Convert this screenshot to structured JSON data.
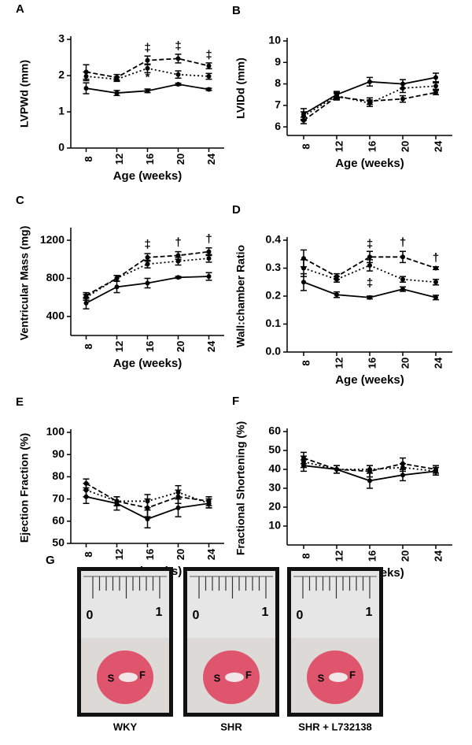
{
  "chart_data": [
    {
      "type": "line",
      "label": "A",
      "xlabel": "Age (weeks)",
      "ylabel": "LVPWd (mm)",
      "xlim": [
        6,
        26
      ],
      "xticks": [
        8,
        12,
        16,
        20,
        24
      ],
      "ylim": [
        0,
        3
      ],
      "yticks": [
        0,
        1,
        2,
        3
      ],
      "x": [
        8,
        12,
        16,
        20,
        24
      ],
      "series": [
        {
          "color": "#000000",
          "line_style": "solid",
          "values": [
            1.65,
            1.52,
            1.58,
            1.76,
            1.62
          ],
          "errors": [
            0.15,
            0.07,
            0.05,
            0.03,
            0.03
          ]
        },
        {
          "color": "#000000",
          "line_style": "dashed",
          "values": [
            2.1,
            1.95,
            2.42,
            2.47,
            2.27
          ],
          "errors": [
            0.2,
            0.08,
            0.12,
            0.12,
            0.08
          ]
        },
        {
          "color": "#000000",
          "line_style": "dotted",
          "values": [
            1.98,
            1.9,
            2.2,
            2.03,
            1.98
          ],
          "errors": [
            0.12,
            0.06,
            0.12,
            0.1,
            0.08
          ]
        }
      ],
      "annotations": [
        {
          "x": 16,
          "y": 2.75,
          "text": "‡"
        },
        {
          "x": 20,
          "y": 2.8,
          "text": "‡"
        },
        {
          "x": 24,
          "y": 2.55,
          "text": "‡"
        },
        {
          "x": 16,
          "y": 1.95,
          "text": "*"
        }
      ]
    },
    {
      "type": "line",
      "label": "B",
      "xlabel": "Age (weeks)",
      "ylabel": "LVIDd (mm)",
      "xlim": [
        6,
        26
      ],
      "xticks": [
        8,
        12,
        16,
        20,
        24
      ],
      "ylim": [
        5.6,
        10
      ],
      "yticks": [
        6,
        7,
        8,
        9,
        10
      ],
      "x": [
        8,
        12,
        16,
        20,
        24
      ],
      "series": [
        {
          "color": "#000000",
          "line_style": "solid",
          "values": [
            6.6,
            7.5,
            8.1,
            8.0,
            8.3
          ],
          "errors": [
            0.25,
            0.15,
            0.2,
            0.2,
            0.2
          ]
        },
        {
          "color": "#000000",
          "line_style": "dashed",
          "values": [
            6.3,
            7.4,
            7.2,
            7.3,
            7.6
          ],
          "errors": [
            0.15,
            0.15,
            0.15,
            0.15,
            0.1
          ]
        },
        {
          "color": "#000000",
          "line_style": "dotted",
          "values": [
            6.5,
            7.45,
            7.1,
            7.8,
            7.9
          ],
          "errors": [
            0.2,
            0.15,
            0.15,
            0.2,
            0.15
          ]
        }
      ],
      "annotations": []
    },
    {
      "type": "line",
      "label": "C",
      "xlabel": "Age (weeks)",
      "ylabel": "Ventricular Mass (mg)",
      "xlim": [
        6,
        26
      ],
      "xticks": [
        8,
        12,
        16,
        20,
        24
      ],
      "ylim": [
        200,
        1300
      ],
      "yticks": [
        400,
        800,
        1200
      ],
      "x": [
        8,
        12,
        16,
        20,
        24
      ],
      "series": [
        {
          "color": "#000000",
          "line_style": "solid",
          "values": [
            540,
            710,
            750,
            810,
            820
          ],
          "errors": [
            60,
            60,
            50,
            10,
            40
          ]
        },
        {
          "color": "#000000",
          "line_style": "dashed",
          "values": [
            620,
            800,
            1020,
            1040,
            1080
          ],
          "errors": [
            30,
            30,
            40,
            40,
            40
          ]
        },
        {
          "color": "#000000",
          "line_style": "dotted",
          "values": [
            600,
            800,
            950,
            980,
            1010
          ],
          "errors": [
            30,
            30,
            40,
            40,
            40
          ]
        }
      ],
      "annotations": [
        {
          "x": 16,
          "y": 1150,
          "text": "‡"
        },
        {
          "x": 20,
          "y": 1170,
          "text": "†"
        },
        {
          "x": 24,
          "y": 1210,
          "text": "†"
        }
      ]
    },
    {
      "type": "line",
      "label": "D",
      "xlabel": "Age (weeks)",
      "ylabel": "Wall:chamber Ratio",
      "xlim": [
        6,
        26
      ],
      "xticks": [
        8,
        12,
        16,
        20,
        24
      ],
      "ylim": [
        0,
        0.4
      ],
      "yticks": [
        {
          "value": 0,
          "label": "0.0"
        },
        0.1,
        0.2,
        0.3,
        0.4
      ],
      "x": [
        8,
        12,
        16,
        20,
        24
      ],
      "series": [
        {
          "color": "#000000",
          "line_style": "solid",
          "values": [
            0.25,
            0.205,
            0.195,
            0.225,
            0.195
          ],
          "errors": [
            0.03,
            0.01,
            0.005,
            0.008,
            0.008
          ]
        },
        {
          "color": "#000000",
          "line_style": "dashed",
          "values": [
            0.335,
            0.27,
            0.34,
            0.34,
            0.3
          ],
          "errors": [
            0.03,
            0.01,
            0.02,
            0.02,
            0.005
          ]
        },
        {
          "color": "#000000",
          "line_style": "dotted",
          "values": [
            0.3,
            0.26,
            0.31,
            0.26,
            0.25
          ],
          "errors": [
            0.03,
            0.01,
            0.02,
            0.01,
            0.01
          ]
        }
      ],
      "annotations": [
        {
          "x": 16,
          "y": 0.385,
          "text": "‡"
        },
        {
          "x": 20,
          "y": 0.39,
          "text": "†"
        },
        {
          "x": 24,
          "y": 0.335,
          "text": "†"
        },
        {
          "x": 16,
          "y": 0.245,
          "text": "‡"
        }
      ]
    },
    {
      "type": "line",
      "label": "E",
      "xlabel": "Age (weeks)",
      "ylabel": "Ejection Fraction (%)",
      "xlim": [
        6,
        26
      ],
      "xticks": [
        8,
        12,
        16,
        20,
        24
      ],
      "ylim": [
        50,
        100
      ],
      "yticks": [
        50,
        60,
        70,
        80,
        90,
        100
      ],
      "x": [
        8,
        12,
        16,
        20,
        24
      ],
      "series": [
        {
          "color": "#000000",
          "line_style": "solid",
          "values": [
            71,
            68,
            61,
            66,
            68
          ],
          "errors": [
            3,
            3,
            4,
            4,
            2
          ]
        },
        {
          "color": "#000000",
          "line_style": "dashed",
          "values": [
            77,
            69,
            66,
            71,
            69
          ],
          "errors": [
            2,
            2,
            4,
            3,
            2
          ]
        },
        {
          "color": "#000000",
          "line_style": "dotted",
          "values": [
            74,
            69,
            69,
            73,
            68
          ],
          "errors": [
            3,
            2,
            3,
            3,
            2
          ]
        }
      ],
      "annotations": []
    },
    {
      "type": "line",
      "label": "F",
      "xlabel": "Age (weeks)",
      "ylabel": "Fractional Shortening (%)",
      "xlim": [
        6,
        26
      ],
      "xticks": [
        8,
        12,
        16,
        20,
        24
      ],
      "ylim": [
        0,
        60
      ],
      "yticks": [
        10,
        20,
        30,
        40,
        50,
        60
      ],
      "x": [
        8,
        12,
        16,
        20,
        24
      ],
      "series": [
        {
          "color": "#000000",
          "line_style": "solid",
          "values": [
            42,
            40,
            34,
            37,
            39
          ],
          "errors": [
            3,
            2,
            4,
            3,
            2
          ]
        },
        {
          "color": "#000000",
          "line_style": "dashed",
          "values": [
            46,
            40,
            39,
            43,
            40
          ],
          "errors": [
            3,
            2,
            3,
            3,
            2
          ]
        },
        {
          "color": "#000000",
          "line_style": "dotted",
          "values": [
            44,
            40,
            40,
            41,
            39
          ],
          "errors": [
            3,
            2,
            2,
            2,
            2
          ]
        }
      ],
      "annotations": []
    }
  ],
  "photo_panel": {
    "label": "G",
    "items": [
      {
        "caption": "WKY",
        "scale_start": "0",
        "scale_end": "1",
        "mark_left": "S",
        "mark_right": "F"
      },
      {
        "caption": "SHR",
        "scale_start": "0",
        "scale_end": "1",
        "mark_left": "S",
        "mark_right": "F"
      },
      {
        "caption": "SHR + L732138",
        "scale_start": "0",
        "scale_end": "1",
        "mark_left": "S",
        "mark_right": "F"
      }
    ]
  }
}
